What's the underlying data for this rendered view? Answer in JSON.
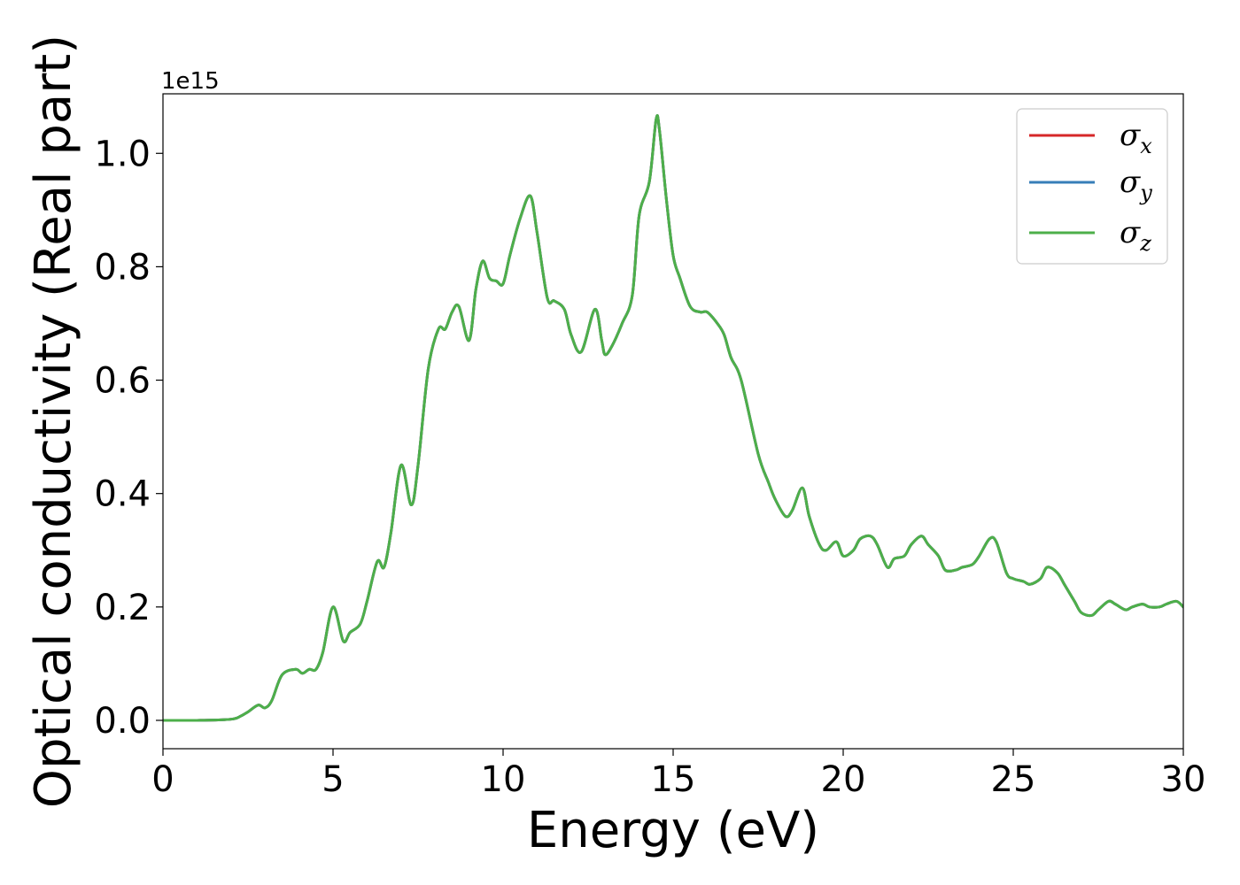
{
  "chart_data": {
    "type": "line",
    "xlabel": "Energy (eV)",
    "ylabel": "Optical conductivity (Real part)",
    "y_offset_text": "1e15",
    "y_scale": 1000000000000000.0,
    "xlim": [
      0,
      30
    ],
    "ylim": [
      -0.05,
      1.105
    ],
    "x_ticks": [
      0,
      5,
      10,
      15,
      20,
      25,
      30
    ],
    "x_tick_labels": [
      "0",
      "5",
      "10",
      "15",
      "20",
      "25",
      "30"
    ],
    "y_ticks": [
      0.0,
      0.2,
      0.4,
      0.6,
      0.8,
      1.0
    ],
    "y_tick_labels": [
      "0.0",
      "0.2",
      "0.4",
      "0.6",
      "0.8",
      "1.0"
    ],
    "grid": false,
    "legend_position": "top-right",
    "legend": [
      {
        "symbol": "σ",
        "sub": "x",
        "color": "#d62728"
      },
      {
        "symbol": "σ",
        "sub": "y",
        "color": "#377eb8"
      },
      {
        "symbol": "σ",
        "sub": "z",
        "color": "#4daf4a"
      }
    ],
    "x": [
      0,
      1.0,
      2.0,
      2.3,
      2.5,
      2.8,
      3.0,
      3.2,
      3.5,
      3.9,
      4.1,
      4.3,
      4.5,
      4.7,
      5.0,
      5.3,
      5.5,
      5.8,
      6.0,
      6.3,
      6.5,
      6.7,
      7.0,
      7.3,
      7.5,
      7.8,
      8.1,
      8.3,
      8.5,
      8.7,
      9.0,
      9.2,
      9.4,
      9.6,
      9.8,
      10.0,
      10.2,
      10.5,
      10.8,
      11.0,
      11.3,
      11.5,
      11.8,
      12.0,
      12.3,
      12.7,
      12.9,
      13.0,
      13.2,
      13.5,
      13.8,
      14.0,
      14.3,
      14.5,
      14.6,
      14.8,
      15.0,
      15.2,
      15.5,
      15.8,
      16.0,
      16.3,
      16.5,
      16.7,
      17.0,
      17.5,
      17.8,
      18.0,
      18.3,
      18.5,
      18.8,
      19.0,
      19.3,
      19.5,
      19.8,
      20.0,
      20.3,
      20.5,
      20.8,
      21.0,
      21.3,
      21.5,
      21.8,
      22.0,
      22.3,
      22.5,
      22.8,
      23.0,
      23.3,
      23.5,
      23.8,
      24.0,
      24.3,
      24.5,
      24.8,
      25.0,
      25.3,
      25.5,
      25.8,
      26.0,
      26.3,
      26.5,
      26.8,
      27.0,
      27.3,
      27.5,
      27.8,
      28.0,
      28.3,
      28.5,
      28.8,
      29.0,
      29.3,
      29.5,
      29.8,
      30.0
    ],
    "series": [
      {
        "name": "σx",
        "color": "#d62728",
        "values": [
          0.0,
          0.0,
          0.002,
          0.008,
          0.015,
          0.027,
          0.022,
          0.035,
          0.08,
          0.09,
          0.083,
          0.09,
          0.09,
          0.12,
          0.2,
          0.14,
          0.155,
          0.17,
          0.21,
          0.28,
          0.27,
          0.33,
          0.45,
          0.38,
          0.45,
          0.62,
          0.69,
          0.69,
          0.72,
          0.73,
          0.67,
          0.76,
          0.81,
          0.78,
          0.775,
          0.77,
          0.82,
          0.885,
          0.925,
          0.86,
          0.745,
          0.74,
          0.725,
          0.68,
          0.65,
          0.725,
          0.67,
          0.645,
          0.66,
          0.7,
          0.75,
          0.89,
          0.95,
          1.06,
          1.04,
          0.92,
          0.82,
          0.78,
          0.73,
          0.72,
          0.72,
          0.7,
          0.68,
          0.64,
          0.6,
          0.47,
          0.42,
          0.39,
          0.36,
          0.37,
          0.41,
          0.36,
          0.31,
          0.3,
          0.315,
          0.29,
          0.3,
          0.32,
          0.325,
          0.31,
          0.27,
          0.285,
          0.29,
          0.31,
          0.325,
          0.31,
          0.29,
          0.265,
          0.265,
          0.27,
          0.275,
          0.29,
          0.32,
          0.315,
          0.26,
          0.25,
          0.245,
          0.24,
          0.25,
          0.27,
          0.26,
          0.24,
          0.21,
          0.19,
          0.185,
          0.195,
          0.21,
          0.205,
          0.195,
          0.2,
          0.205,
          0.2,
          0.2,
          0.205,
          0.21,
          0.2
        ]
      },
      {
        "name": "σy",
        "color": "#377eb8",
        "values": [
          0.0,
          0.0,
          0.002,
          0.008,
          0.015,
          0.027,
          0.022,
          0.035,
          0.08,
          0.09,
          0.083,
          0.09,
          0.09,
          0.12,
          0.2,
          0.14,
          0.155,
          0.17,
          0.21,
          0.28,
          0.27,
          0.33,
          0.45,
          0.38,
          0.45,
          0.62,
          0.69,
          0.69,
          0.72,
          0.73,
          0.67,
          0.76,
          0.81,
          0.78,
          0.775,
          0.77,
          0.82,
          0.885,
          0.925,
          0.86,
          0.745,
          0.74,
          0.725,
          0.68,
          0.65,
          0.725,
          0.67,
          0.645,
          0.66,
          0.7,
          0.75,
          0.89,
          0.95,
          1.06,
          1.04,
          0.92,
          0.82,
          0.78,
          0.73,
          0.72,
          0.72,
          0.7,
          0.68,
          0.64,
          0.6,
          0.47,
          0.42,
          0.39,
          0.36,
          0.37,
          0.41,
          0.36,
          0.31,
          0.3,
          0.315,
          0.29,
          0.3,
          0.32,
          0.325,
          0.31,
          0.27,
          0.285,
          0.29,
          0.31,
          0.325,
          0.31,
          0.29,
          0.265,
          0.265,
          0.27,
          0.275,
          0.29,
          0.32,
          0.315,
          0.26,
          0.25,
          0.245,
          0.24,
          0.25,
          0.27,
          0.26,
          0.24,
          0.21,
          0.19,
          0.185,
          0.195,
          0.21,
          0.205,
          0.195,
          0.2,
          0.205,
          0.2,
          0.2,
          0.205,
          0.21,
          0.2
        ]
      },
      {
        "name": "σz",
        "color": "#4daf4a",
        "values": [
          0.0,
          0.0,
          0.002,
          0.008,
          0.015,
          0.027,
          0.022,
          0.035,
          0.08,
          0.09,
          0.083,
          0.09,
          0.09,
          0.12,
          0.2,
          0.14,
          0.155,
          0.17,
          0.21,
          0.28,
          0.27,
          0.33,
          0.45,
          0.38,
          0.45,
          0.62,
          0.69,
          0.69,
          0.72,
          0.73,
          0.67,
          0.76,
          0.81,
          0.78,
          0.775,
          0.77,
          0.82,
          0.885,
          0.925,
          0.86,
          0.745,
          0.74,
          0.725,
          0.68,
          0.65,
          0.725,
          0.67,
          0.645,
          0.66,
          0.7,
          0.75,
          0.89,
          0.95,
          1.06,
          1.04,
          0.92,
          0.82,
          0.78,
          0.73,
          0.72,
          0.72,
          0.7,
          0.68,
          0.64,
          0.6,
          0.47,
          0.42,
          0.39,
          0.36,
          0.37,
          0.41,
          0.36,
          0.31,
          0.3,
          0.315,
          0.29,
          0.3,
          0.32,
          0.325,
          0.31,
          0.27,
          0.285,
          0.29,
          0.31,
          0.325,
          0.31,
          0.29,
          0.265,
          0.265,
          0.27,
          0.275,
          0.29,
          0.32,
          0.315,
          0.26,
          0.25,
          0.245,
          0.24,
          0.25,
          0.27,
          0.26,
          0.24,
          0.21,
          0.19,
          0.185,
          0.195,
          0.21,
          0.205,
          0.195,
          0.2,
          0.205,
          0.2,
          0.2,
          0.205,
          0.21,
          0.2
        ]
      }
    ]
  }
}
